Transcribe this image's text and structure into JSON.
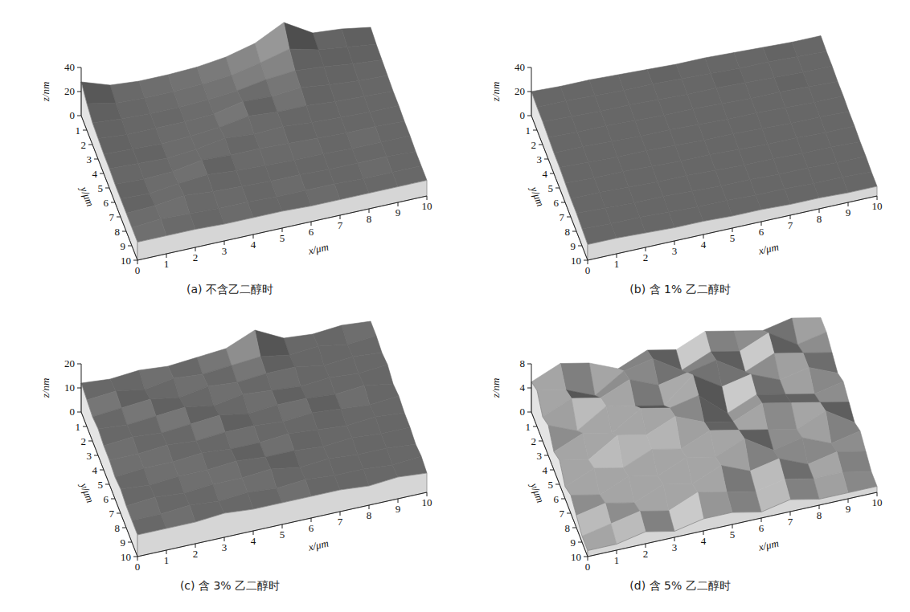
{
  "chart_data": [
    {
      "type": "surface",
      "title": "(a) 不含乙二醇时",
      "x_label": "x/μm",
      "y_label": "y/μm",
      "z_label": "z/nm",
      "color": "#5a5a5a",
      "xlim": [
        0,
        10
      ],
      "ylim": [
        0,
        10
      ],
      "zlim": [
        0,
        40
      ],
      "xticks": [
        0,
        1,
        2,
        3,
        4,
        5,
        6,
        7,
        8,
        9,
        10
      ],
      "yticks": [
        1,
        2,
        3,
        4,
        5,
        6,
        7,
        8,
        9,
        10
      ],
      "zticks": [
        0,
        20,
        40
      ],
      "x": [
        0,
        1,
        2,
        3,
        4,
        5,
        6,
        7,
        8,
        9,
        10
      ],
      "y": [
        0,
        1,
        2,
        3,
        4,
        5,
        6,
        7,
        8,
        9,
        10
      ],
      "values": [
        [
          28,
          20,
          18,
          18,
          19,
          22,
          28,
          40,
          26,
          24,
          20
        ],
        [
          22,
          17,
          16,
          16,
          17,
          19,
          24,
          30,
          24,
          21,
          18
        ],
        [
          18,
          16,
          15,
          15,
          16,
          18,
          22,
          24,
          22,
          19,
          17
        ],
        [
          17,
          15,
          15,
          15,
          16,
          21,
          20,
          22,
          19,
          17,
          16
        ],
        [
          16,
          15,
          14,
          15,
          17,
          21,
          19,
          19,
          17,
          16,
          15
        ],
        [
          16,
          15,
          14,
          16,
          20,
          18,
          19,
          17,
          16,
          15,
          15
        ],
        [
          15,
          14,
          15,
          19,
          18,
          18,
          17,
          16,
          15,
          15,
          14
        ],
        [
          15,
          14,
          17,
          19,
          17,
          16,
          15,
          15,
          14,
          14,
          14
        ],
        [
          15,
          16,
          19,
          17,
          16,
          15,
          15,
          14,
          14,
          14,
          13
        ],
        [
          15,
          17,
          16,
          15,
          15,
          14,
          14,
          14,
          13,
          13,
          13
        ],
        [
          15,
          15,
          15,
          14,
          14,
          14,
          13,
          13,
          13,
          13,
          13
        ]
      ]
    },
    {
      "type": "surface",
      "title": "(b) 含 1% 乙二醇时",
      "x_label": "x/μm",
      "y_label": "y/μm",
      "z_label": "z/nm",
      "color": "#5a5a5a",
      "xlim": [
        0,
        10
      ],
      "ylim": [
        0,
        10
      ],
      "zlim": [
        0,
        40
      ],
      "xticks": [
        0,
        1,
        2,
        3,
        4,
        5,
        6,
        7,
        8,
        9,
        10
      ],
      "yticks": [
        1,
        2,
        3,
        4,
        5,
        6,
        7,
        8,
        9,
        10
      ],
      "zticks": [
        0,
        20,
        40
      ],
      "x": [
        0,
        1,
        2,
        3,
        4,
        5,
        6,
        7,
        8,
        9,
        10
      ],
      "y": [
        0,
        1,
        2,
        3,
        4,
        5,
        6,
        7,
        8,
        9,
        10
      ],
      "values": [
        [
          20,
          19,
          19,
          18,
          17,
          16,
          16,
          15,
          14,
          13,
          13
        ],
        [
          19,
          19,
          18,
          17,
          17,
          16,
          15,
          14,
          14,
          13,
          12
        ],
        [
          19,
          18,
          17,
          17,
          16,
          15,
          15,
          14,
          13,
          12,
          12
        ],
        [
          18,
          17,
          17,
          16,
          15,
          15,
          14,
          13,
          13,
          12,
          11
        ],
        [
          17,
          17,
          16,
          15,
          15,
          14,
          13,
          13,
          12,
          11,
          11
        ],
        [
          17,
          16,
          15,
          15,
          14,
          13,
          13,
          12,
          11,
          11,
          10
        ],
        [
          16,
          15,
          15,
          14,
          13,
          13,
          12,
          11,
          11,
          10,
          10
        ],
        [
          15,
          15,
          14,
          13,
          13,
          12,
          11,
          11,
          10,
          10,
          9
        ],
        [
          15,
          14,
          13,
          13,
          12,
          11,
          11,
          10,
          10,
          9,
          9
        ],
        [
          14,
          13,
          13,
          12,
          11,
          11,
          10,
          10,
          9,
          9,
          8
        ],
        [
          13,
          13,
          12,
          11,
          11,
          10,
          10,
          9,
          9,
          8,
          8
        ]
      ]
    },
    {
      "type": "surface",
      "title": "(c) 含 3% 乙二醇时",
      "x_label": "x/μm",
      "y_label": "y/μm",
      "z_label": "z/nm",
      "color": "#5a5a5a",
      "xlim": [
        0,
        10
      ],
      "ylim": [
        0,
        10
      ],
      "zlim": [
        0,
        20
      ],
      "xticks": [
        0,
        1,
        2,
        3,
        4,
        5,
        6,
        7,
        8,
        9,
        10
      ],
      "yticks": [
        1,
        2,
        3,
        4,
        5,
        6,
        7,
        8,
        9,
        10
      ],
      "zticks": [
        0,
        10,
        20
      ],
      "x": [
        0,
        1,
        2,
        3,
        4,
        5,
        6,
        7,
        8,
        9,
        10
      ],
      "y": [
        0,
        1,
        2,
        3,
        4,
        5,
        6,
        7,
        8,
        9,
        10
      ],
      "values": [
        [
          12,
          11,
          12,
          11,
          12,
          13,
          18,
          12,
          11,
          12,
          11
        ],
        [
          11,
          12,
          10,
          12,
          11,
          12,
          13,
          11,
          12,
          10,
          11
        ],
        [
          10,
          11,
          12,
          10,
          12,
          11,
          12,
          12,
          10,
          11,
          10
        ],
        [
          11,
          10,
          11,
          12,
          10,
          12,
          11,
          10,
          11,
          10,
          11
        ],
        [
          10,
          11,
          10,
          11,
          12,
          10,
          11,
          11,
          10,
          11,
          9
        ],
        [
          10,
          10,
          11,
          10,
          11,
          11,
          10,
          11,
          10,
          9,
          10
        ],
        [
          9,
          10,
          10,
          11,
          10,
          10,
          11,
          10,
          9,
          10,
          9
        ],
        [
          10,
          9,
          10,
          10,
          11,
          10,
          10,
          9,
          10,
          9,
          9
        ],
        [
          9,
          10,
          9,
          10,
          10,
          11,
          9,
          10,
          9,
          9,
          8
        ],
        [
          9,
          9,
          10,
          9,
          10,
          9,
          10,
          9,
          9,
          8,
          9
        ],
        [
          9,
          9,
          9,
          10,
          9,
          9,
          9,
          9,
          8,
          9,
          8
        ]
      ]
    },
    {
      "type": "surface",
      "title": "(d) 含 5% 乙二醇时",
      "x_label": "x/μm",
      "y_label": "y/μm",
      "z_label": "z/nm",
      "color": "#7a7a7a",
      "xlim": [
        0,
        10
      ],
      "ylim": [
        0,
        10
      ],
      "zlim": [
        0,
        8
      ],
      "xticks": [
        0,
        1,
        2,
        3,
        4,
        5,
        6,
        7,
        8,
        9,
        10
      ],
      "yticks": [
        1,
        2,
        3,
        4,
        5,
        6,
        7,
        8,
        9,
        10
      ],
      "zticks": [
        0,
        4,
        8
      ],
      "x": [
        0,
        1,
        2,
        3,
        4,
        5,
        6,
        7,
        8,
        9,
        10
      ],
      "y": [
        0,
        1,
        2,
        3,
        4,
        5,
        6,
        7,
        8,
        9,
        10
      ],
      "values": [
        [
          5,
          7,
          6,
          4,
          6,
          5,
          7,
          6,
          5,
          6,
          5
        ],
        [
          6,
          5,
          3,
          6,
          7,
          4,
          6,
          5,
          7,
          4,
          5
        ],
        [
          4,
          6,
          5,
          7,
          5,
          6,
          7,
          4,
          6,
          5,
          4
        ],
        [
          5,
          3,
          6,
          5,
          4,
          8,
          5,
          6,
          4,
          5,
          3
        ],
        [
          3,
          5,
          4,
          7,
          6,
          7,
          3,
          5,
          4,
          3,
          4
        ],
        [
          4,
          3,
          6,
          5,
          7,
          5,
          4,
          6,
          5,
          4,
          3
        ],
        [
          2,
          4,
          3,
          5,
          4,
          6,
          5,
          4,
          3,
          5,
          2
        ],
        [
          3,
          2,
          4,
          3,
          5,
          4,
          6,
          3,
          4,
          2,
          3
        ],
        [
          2,
          3,
          2,
          4,
          3,
          5,
          3,
          4,
          2,
          3,
          2
        ],
        [
          1,
          2,
          3,
          2,
          4,
          3,
          2,
          3,
          2,
          2,
          1
        ],
        [
          1,
          1,
          2,
          1,
          2,
          2,
          1,
          2,
          1,
          1,
          1
        ]
      ]
    }
  ]
}
